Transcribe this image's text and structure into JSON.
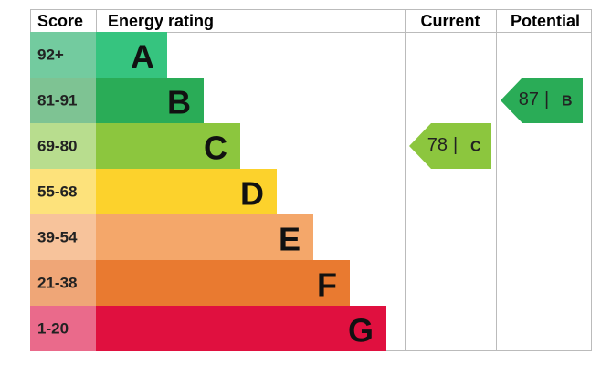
{
  "header": {
    "score": "Score",
    "rating": "Energy rating",
    "current": "Current",
    "potential": "Potential"
  },
  "bands": [
    {
      "score": "92+",
      "letter": "A",
      "color": "#36c47f",
      "score_color": "#73cb9f"
    },
    {
      "score": "81-91",
      "letter": "B",
      "color": "#2aac57",
      "score_color": "#7ec393"
    },
    {
      "score": "69-80",
      "letter": "C",
      "color": "#8cc63e",
      "score_color": "#b8dd8e"
    },
    {
      "score": "55-68",
      "letter": "D",
      "color": "#fcd22c",
      "score_color": "#fde27b"
    },
    {
      "score": "39-54",
      "letter": "E",
      "color": "#f4a76a",
      "score_color": "#f7c39b"
    },
    {
      "score": "21-38",
      "letter": "F",
      "color": "#e97a30",
      "score_color": "#efa677"
    },
    {
      "score": "1-20",
      "letter": "G",
      "color": "#e0103f",
      "score_color": "#ea6a8b"
    }
  ],
  "current": {
    "value": 78,
    "separator": "|",
    "band": "C",
    "color": "#8cc63e"
  },
  "potential": {
    "value": 87,
    "separator": "|",
    "band": "B",
    "color": "#2aac57"
  }
}
